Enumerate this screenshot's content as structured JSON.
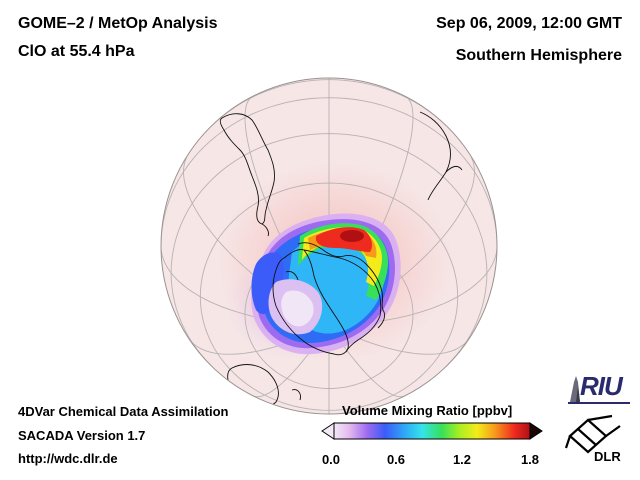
{
  "header": {
    "title": "GOME–2 / MetOp Analysis",
    "species": "ClO at 55.4 hPa",
    "date": "Sep 06, 2009, 12:00 GMT",
    "region": "Southern Hemisphere"
  },
  "footer": {
    "line1": "4DVar Chemical Data Assimilation",
    "line2": "SACADA Version 1.7",
    "line3": "http://wdc.dlr.de"
  },
  "colorbar": {
    "title": "Volume Mixing Ratio [ppbv]",
    "ticks": [
      "0.0",
      "0.6",
      "1.2",
      "1.8"
    ],
    "range": [
      0.0,
      1.8
    ],
    "colors": [
      "#f3eaf6",
      "#e2b8ee",
      "#9d6bf0",
      "#3b5cf8",
      "#2fa8f6",
      "#33e4ea",
      "#38e05a",
      "#a9ee22",
      "#f3ec1a",
      "#f79a1c",
      "#ef2a1e",
      "#b01014"
    ]
  },
  "logos": {
    "riu": "RIU",
    "dlr": "DLR"
  },
  "map": {
    "projection": "orthographic",
    "hemisphere": "south",
    "background_color": "#f6e6e6",
    "graticule_color": "#b9b2b2",
    "coast_color": "#111111"
  }
}
